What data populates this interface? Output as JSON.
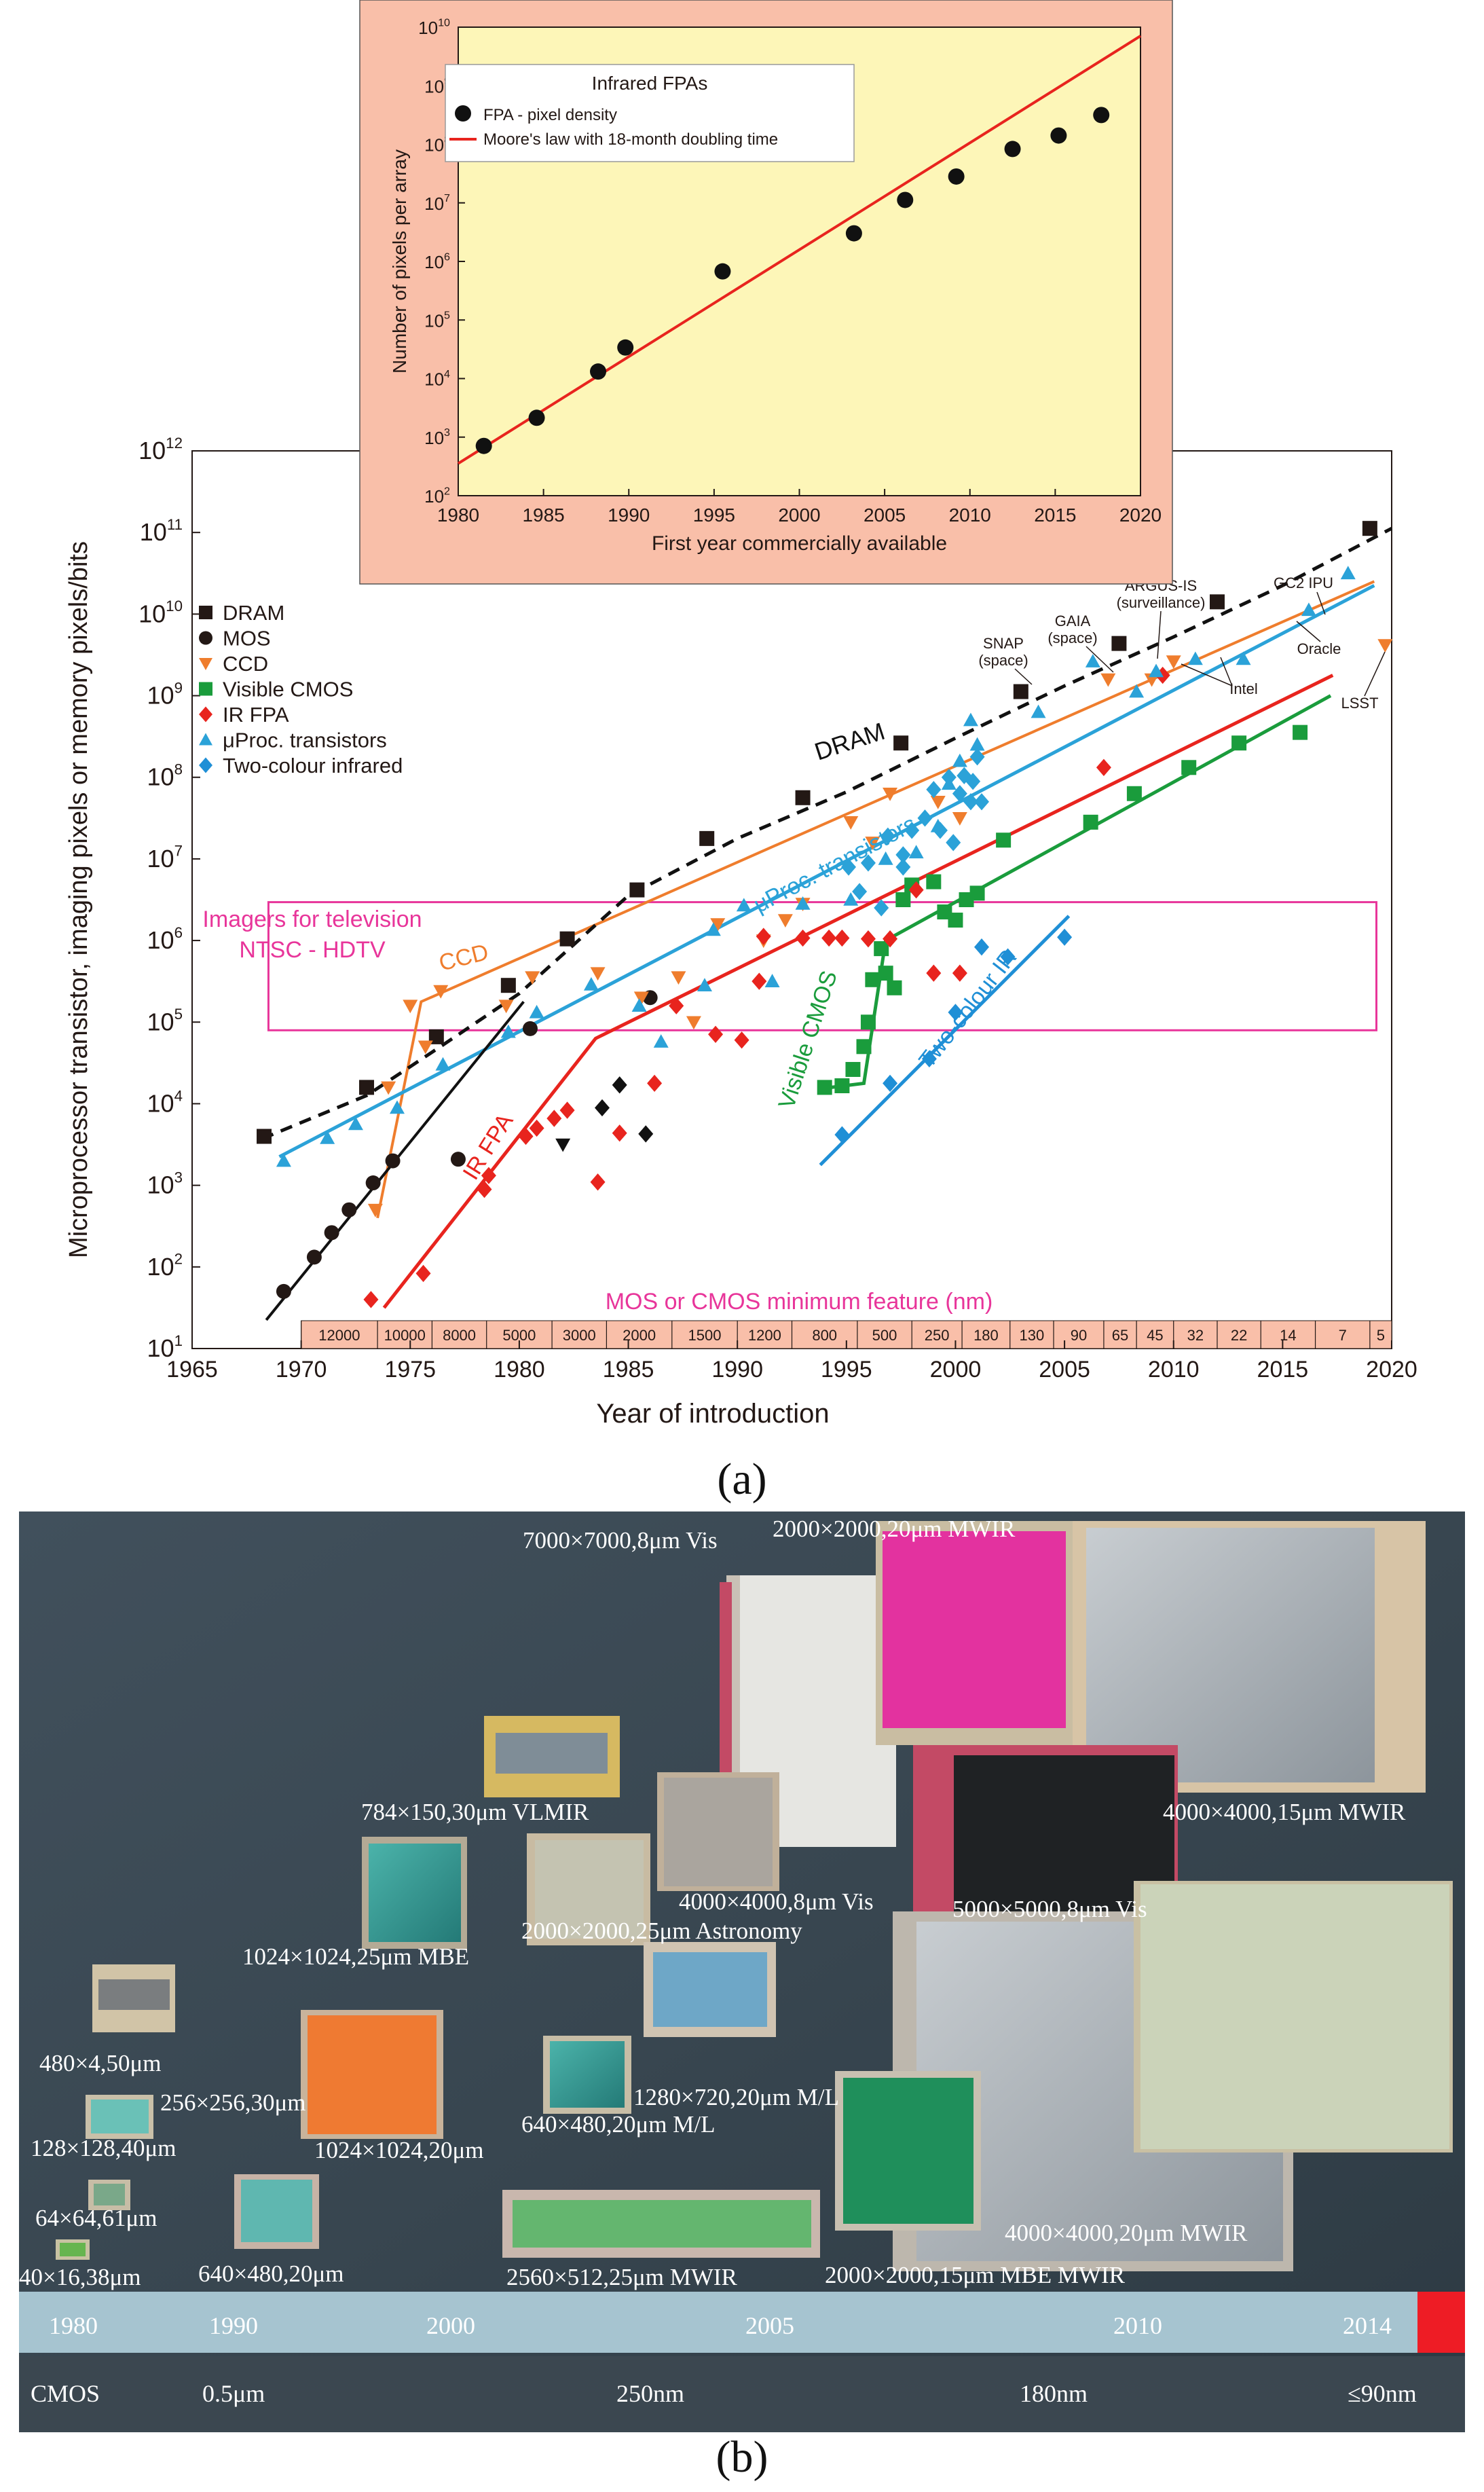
{
  "panel_a_label": "(a)",
  "panel_b_label": "(b)",
  "chart_data": [
    {
      "type": "scatter",
      "title": "Infrared FPAs",
      "xlabel": "First year commercially available",
      "ylabel": "Number of pixels per array",
      "xlim": [
        1980,
        2020
      ],
      "ylim_log10": [
        2,
        10
      ],
      "xticks": [
        "1980",
        "1985",
        "1990",
        "1995",
        "2000",
        "2005",
        "2010",
        "2015",
        "2020"
      ],
      "ytick_exponents": [
        "2",
        "3",
        "4",
        "5",
        "6",
        "7",
        "8",
        "9",
        "10"
      ],
      "legend": {
        "title": "Infrared FPAs",
        "points": "FPA - pixel density",
        "line": "Moore's law with 18-month doubling time",
        "placement": "top-left"
      },
      "series": [
        {
          "name": "FPA - pixel density",
          "kind": "points",
          "x": [
            1981.5,
            1984.6,
            1988.2,
            1989.8,
            1995.5,
            2003.2,
            2006.2,
            2009.2,
            2012.5,
            2015.2,
            2017.7
          ],
          "log10_y": [
            2.85,
            3.33,
            4.12,
            4.53,
            5.83,
            6.48,
            7.05,
            7.45,
            7.92,
            8.15,
            8.5
          ]
        },
        {
          "name": "Moore's law with 18-month doubling time",
          "kind": "line",
          "x": [
            1980,
            2020
          ],
          "log10_y": [
            2.55,
            9.85
          ]
        }
      ]
    },
    {
      "type": "scatter",
      "title": "",
      "xlabel": "Year of introduction",
      "ylabel": "Microprocessor transistor, imaging pixels or memory pixels/bits",
      "xlim": [
        1965,
        2020
      ],
      "ylim_log10": [
        1,
        12
      ],
      "xticks": [
        "1965",
        "1970",
        "1975",
        "1980",
        "1985",
        "1990",
        "1995",
        "2000",
        "2005",
        "2010",
        "2015",
        "2020"
      ],
      "ytick_exponents": [
        "1",
        "2",
        "3",
        "4",
        "5",
        "6",
        "7",
        "8",
        "9",
        "10",
        "11",
        "12"
      ],
      "legend": [
        "DRAM",
        "MOS",
        "CCD",
        "Visible CMOS",
        "IR FPA",
        "μProc. transistors",
        "Two-colour infrared"
      ],
      "colors": {
        "DRAM": "#231815",
        "MOS": "#231815",
        "CCD": "#ef7d2d",
        "Visible CMOS": "#1a9c3c",
        "IR FPA": "#e8241e",
        "uProc": "#2ba2d8",
        "Two-colour": "#1f8fd6",
        "box": "#e8359a",
        "feature": "#e8359a"
      },
      "box": {
        "line1": "Imagers for television",
        "line2": "NTSC - HDTV",
        "x": [
          1968.5,
          2019.3
        ],
        "log10_y": [
          4.9,
          6.47
        ]
      },
      "feature_title": "MOS or CMOS minimum feature (nm)",
      "features": [
        {
          "label": "12000",
          "x0": 1970.0,
          "x1": 1973.5
        },
        {
          "label": "10000",
          "x0": 1973.5,
          "x1": 1976.0
        },
        {
          "label": "8000",
          "x0": 1976.0,
          "x1": 1978.5
        },
        {
          "label": "5000",
          "x0": 1978.5,
          "x1": 1981.5
        },
        {
          "label": "3000",
          "x0": 1981.5,
          "x1": 1984.0
        },
        {
          "label": "2000",
          "x0": 1984.0,
          "x1": 1987.0
        },
        {
          "label": "1500",
          "x0": 1987.0,
          "x1": 1990.0
        },
        {
          "label": "1200",
          "x0": 1990.0,
          "x1": 1992.5
        },
        {
          "label": "800",
          "x0": 1992.5,
          "x1": 1995.5
        },
        {
          "label": "500",
          "x0": 1995.5,
          "x1": 1998.0
        },
        {
          "label": "250",
          "x0": 1998.0,
          "x1": 2000.3
        },
        {
          "label": "180",
          "x0": 2000.3,
          "x1": 2002.5
        },
        {
          "label": "130",
          "x0": 2002.5,
          "x1": 2004.5
        },
        {
          "label": "90",
          "x0": 2004.5,
          "x1": 2006.8
        },
        {
          "label": "65",
          "x0": 2006.8,
          "x1": 2008.3
        },
        {
          "label": "45",
          "x0": 2008.3,
          "x1": 2010.0
        },
        {
          "label": "32",
          "x0": 2010.0,
          "x1": 2012.0
        },
        {
          "label": "22",
          "x0": 2012.0,
          "x1": 2014.0
        },
        {
          "label": "14",
          "x0": 2014.0,
          "x1": 2016.5
        },
        {
          "label": "7",
          "x0": 2016.5,
          "x1": 2019.0
        },
        {
          "label": "5",
          "x0": 2019.0,
          "x1": 2020.0
        }
      ],
      "trend_labels": {
        "dram": "DRAM",
        "uproc": "μProc. transistors",
        "ccd": "CCD",
        "irfpa": "IR FPA",
        "vcmos": "Visible CMOS",
        "twocolour": "Two-colour IR"
      },
      "annotations": {
        "snap_1": "SNAP",
        "snap_2": "(space)",
        "gaia_1": "GAIA",
        "gaia_2": "(space)",
        "argus_1": "ARGUS-IS",
        "argus_2": "(surveillance)",
        "gc2": "GC2 IPU",
        "intel": "Intel",
        "oracle": "Oracle",
        "lsst": "LSST"
      },
      "series": [
        {
          "name": "DRAM",
          "marker": "square",
          "x": [
            1968.3,
            1973,
            1976.2,
            1979.5,
            1982.2,
            1985.4,
            1988.6,
            1993,
            1997.5,
            2003,
            2007.5,
            2012,
            2019
          ],
          "log10_y": [
            3.6,
            4.2,
            4.82,
            5.45,
            6.02,
            6.62,
            7.25,
            7.75,
            8.42,
            9.05,
            9.64,
            10.15,
            11.05
          ]
        },
        {
          "name": "MOS",
          "marker": "circle",
          "x": [
            1969.2,
            1970.6,
            1971.4,
            1972.2,
            1973.3,
            1974.2,
            1977.2,
            1980.5,
            1986
          ],
          "log10_y": [
            1.7,
            2.12,
            2.42,
            2.7,
            3.03,
            3.3,
            3.32,
            4.92,
            5.3
          ]
        },
        {
          "name": "MOS-other",
          "marker": "triangle-down",
          "x": [
            1982
          ],
          "log10_y": [
            3.5
          ]
        },
        {
          "name": "MOS-other2",
          "marker": "diamond",
          "x": [
            1984.6,
            1983.8,
            1985.8
          ],
          "log10_y": [
            4.23,
            3.95,
            3.63
          ]
        },
        {
          "name": "CCD",
          "marker": "triangle-down",
          "x": [
            1973.4,
            1975.0,
            1976.4,
            1975.7,
            1974.0,
            1979.4,
            1980.6,
            1983.6,
            1985.6,
            1987.3,
            1988.0,
            1989.1,
            1991.2,
            1992.2,
            1993.0,
            1995.2,
            1996.2,
            1997.0,
            1999.2,
            2000.2,
            2007.0,
            2009.0,
            2010.0,
            2019.7
          ],
          "log10_y": [
            2.7,
            5.2,
            5.38,
            4.7,
            4.2,
            5.2,
            5.55,
            5.6,
            5.3,
            5.55,
            5.0,
            6.2,
            6.0,
            6.25,
            6.45,
            7.45,
            7.2,
            7.8,
            7.7,
            7.5,
            9.2,
            9.2,
            9.42,
            9.62
          ]
        },
        {
          "name": "Visible CMOS",
          "marker": "square",
          "x": [
            1994,
            1994.8,
            1995.3,
            1995.8,
            1996.0,
            1996.2,
            1996.6,
            1996.8,
            1997.2,
            1997.6,
            1998.0,
            1999.0,
            1999.5,
            2000.5,
            2000.0,
            2001.0,
            2002.2,
            2006.2,
            2008.2,
            2010.7,
            2013.0,
            2015.8
          ],
          "log10_y": [
            4.2,
            4.22,
            4.42,
            4.7,
            5.0,
            5.52,
            5.9,
            5.6,
            5.42,
            6.5,
            6.68,
            6.72,
            6.35,
            6.5,
            6.25,
            6.58,
            7.23,
            7.45,
            7.8,
            8.12,
            8.42,
            8.55
          ]
        },
        {
          "name": "IR FPA",
          "marker": "diamond",
          "x": [
            1973.2,
            1975.6,
            1978.4,
            1978.6,
            1980.3,
            1980.8,
            1981.6,
            1982.2,
            1983.6,
            1984.6,
            1986.2,
            1987.2,
            1989.0,
            1990.2,
            1991.0,
            1991.2,
            1993.0,
            1994.2,
            1994.8,
            1996.0,
            1997.0,
            1998.2,
            1999.0,
            2000.2,
            2006.8,
            2009.5
          ],
          "log10_y": [
            1.6,
            1.92,
            2.95,
            3.12,
            3.6,
            3.7,
            3.82,
            3.92,
            3.04,
            3.64,
            4.25,
            5.2,
            4.85,
            4.78,
            5.5,
            6.05,
            6.03,
            6.03,
            6.03,
            6.02,
            6.02,
            6.62,
            5.6,
            5.6,
            8.12,
            9.25
          ]
        },
        {
          "name": "uProc transistors",
          "marker": "triangle-up",
          "x": [
            1969.2,
            1971.2,
            1972.5,
            1974.4,
            1976.5,
            1979.5,
            1980.8,
            1983.3,
            1985.5,
            1986.5,
            1988.5,
            1988.9,
            1990.3,
            1991.6,
            1993.0,
            1995.2,
            1996.8,
            1998.2,
            1999.2,
            1999.7,
            2000.2,
            2000.7,
            2001.0,
            2003.8,
            2006.3,
            2008.3,
            2009.2,
            2011.0,
            2013.2,
            2016.2,
            2018.0
          ],
          "log10_y": [
            3.3,
            3.58,
            3.75,
            3.95,
            4.48,
            4.88,
            5.12,
            5.46,
            5.2,
            4.76,
            5.45,
            6.13,
            6.43,
            5.5,
            6.45,
            6.5,
            7.0,
            7.08,
            7.4,
            7.92,
            8.2,
            8.7,
            8.4,
            8.8,
            9.42,
            9.05,
            9.3,
            9.45,
            9.45,
            10.05,
            10.5
          ]
        },
        {
          "name": "Two-colour infrared",
          "marker": "diamond",
          "x": [
            1994.8,
            1997.0,
            1998.8,
            2000.0,
            2001.2,
            2002.4,
            2005.0
          ],
          "log10_y": [
            3.62,
            4.25,
            4.55,
            5.12,
            5.92,
            5.8,
            6.04
          ]
        },
        {
          "name": "uProc cluster",
          "marker": "diamond",
          "x": [
            2000.4,
            2000.8,
            2001.0,
            1999.7,
            1999.0,
            2000.2,
            2000.7,
            1998.6,
            1998.0,
            1997.6,
            1999.3,
            1999.9,
            2001.2,
            1996.0,
            1995.1,
            1995.6,
            1996.9,
            1997.6,
            1996.6
          ],
          "log10_y": [
            8.02,
            7.95,
            8.25,
            8.0,
            7.85,
            7.8,
            7.7,
            7.5,
            7.35,
            7.05,
            7.35,
            7.2,
            7.7,
            6.95,
            6.9,
            6.6,
            7.28,
            6.9,
            6.4
          ]
        }
      ],
      "trend_lines": {
        "dram": {
          "x": [
            1968.2,
            1973,
            1976.5,
            1980,
            1985,
            1990,
            1995,
            2000,
            2005,
            2010,
            2015,
            2020
          ],
          "log10_y": [
            3.57,
            4.1,
            4.72,
            5.35,
            6.55,
            7.25,
            7.82,
            8.48,
            9.12,
            9.72,
            10.35,
            11.05
          ]
        },
        "mos": {
          "x": [
            1968.4,
            1980.2
          ],
          "log10_y": [
            1.35,
            5.25
          ]
        },
        "ccd": {
          "x": [
            1973.5,
            1975.5,
            2019.2
          ],
          "log10_y": [
            2.6,
            5.25,
            10.4
          ]
        },
        "uproc": {
          "x": [
            1969,
            2019.2
          ],
          "log10_y": [
            3.35,
            10.35
          ]
        },
        "irfpa": {
          "x": [
            1973.8,
            1983.5,
            2017.3
          ],
          "log10_y": [
            1.5,
            4.8,
            9.25
          ]
        },
        "vcmos": {
          "x": [
            1994.3,
            1995.8,
            1996.8,
            2017.2
          ],
          "log10_y": [
            4.2,
            4.25,
            6.0,
            9.0
          ]
        },
        "twocolour": {
          "x": [
            1993.8,
            2005.2
          ],
          "log10_y": [
            3.25,
            6.3
          ]
        }
      }
    }
  ],
  "photo": {
    "labels": {
      "l1": "7000×7000,8μm Vis",
      "l2": "2000×2000,20μm MWIR",
      "l3": "784×150,30μm VLMIR",
      "l4": "4000×4000,15μm MWIR",
      "l5": "4000×4000,8μm Vis",
      "l6": "5000×5000,8μm Vis",
      "l7": "2000×2000,25μm Astronomy",
      "l8": "1024×1024,25μm MBE",
      "l9": "480×4,50μm",
      "l10": "256×256,30μm",
      "l11": "1280×720,20μm M/L",
      "l12": "128×128,40μm",
      "l13": "1024×1024,20μm",
      "l14": "640×480,20μm M/L",
      "l15": "64×64,61μm",
      "l16": "4000×4000,20μm MWIR",
      "l17": "40×16,38μm",
      "l18": "640×480,20μm",
      "l19": "2560×512,25μm MWIR",
      "l20": "2000×2000,15μm MBE MWIR"
    },
    "years": [
      "1980",
      "1990",
      "2000",
      "2005",
      "2010",
      "2014"
    ],
    "cmos_label": "CMOS",
    "cmos_nodes": [
      "0.5μm",
      "250nm",
      "180nm",
      "≤90nm"
    ]
  }
}
